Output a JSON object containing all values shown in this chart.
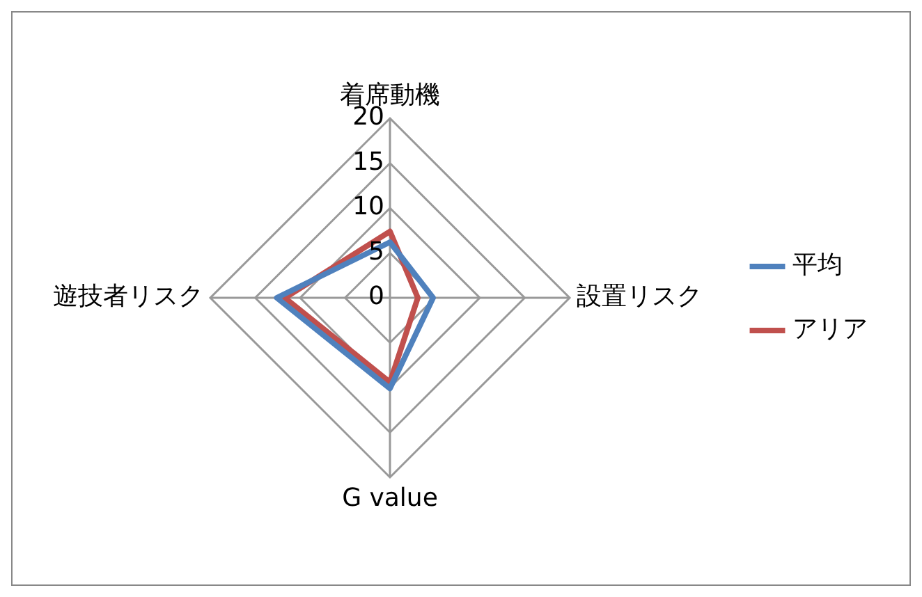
{
  "chart_data": {
    "type": "radar",
    "categories": [
      "着席動機",
      "設置リスク",
      "G value",
      "遊技者リスク"
    ],
    "series": [
      {
        "name": "平均",
        "color": "#4f81bd",
        "values": [
          6.2,
          4.8,
          10.1,
          12.6
        ]
      },
      {
        "name": "アリア",
        "color": "#c0504d",
        "values": [
          7.4,
          3.1,
          9.4,
          11.7
        ]
      }
    ],
    "ylim": [
      0,
      20
    ],
    "yticks": [
      0,
      5,
      10,
      15,
      20
    ],
    "grid": true,
    "legend": "right",
    "marker": "none"
  }
}
